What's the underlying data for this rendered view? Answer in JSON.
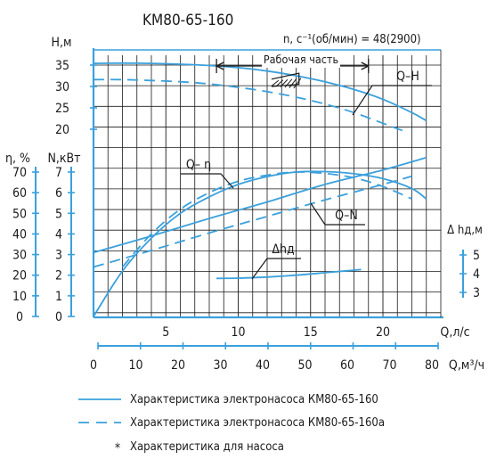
{
  "chart_data": {
    "type": "line",
    "title": "KM80-65-160",
    "speed_label": "n, c⁻¹(об/мин) = 48(2900)",
    "working_part_label": "Рабочая часть",
    "x_axis": {
      "label": "Q,л/с",
      "range": [
        0,
        24
      ],
      "ticks": [
        "5",
        "10",
        "15",
        "20"
      ],
      "tick_values": [
        5,
        10,
        15,
        20
      ]
    },
    "x_axis_m3h": {
      "label": "Q,м³/ч",
      "ticks": [
        "0",
        "10",
        "20",
        "30",
        "40",
        "50",
        "60",
        "70",
        "80"
      ],
      "tick_values": [
        0,
        10,
        20,
        30,
        40,
        50,
        60,
        70,
        80
      ]
    },
    "axes": {
      "head": {
        "label": "H,м",
        "range": [
          20,
          35
        ],
        "ticks": [
          "35",
          "30",
          "25",
          "20"
        ],
        "tick_values": [
          35,
          30,
          25,
          20
        ]
      },
      "power": {
        "label": "N,кВт",
        "range": [
          0,
          7
        ],
        "ticks": [
          "7",
          "6",
          "5",
          "4",
          "3",
          "2",
          "1",
          "0"
        ],
        "tick_values": [
          7,
          6,
          5,
          4,
          3,
          2,
          1,
          0
        ]
      },
      "efficiency": {
        "label": "η, %",
        "range": [
          0,
          70
        ],
        "ticks": [
          "70",
          "60",
          "50",
          "40",
          "30",
          "20",
          "10",
          "0"
        ],
        "tick_values": [
          70,
          60,
          50,
          40,
          30,
          20,
          10,
          0
        ]
      },
      "npsh": {
        "label": "Δ hд,м",
        "range": [
          3,
          5
        ],
        "ticks": [
          "5",
          "4",
          "3"
        ],
        "tick_values": [
          5,
          4,
          3
        ]
      }
    },
    "working_range": [
      8.5,
      19
    ],
    "curve_labels": {
      "qh": "Q–H",
      "qeta": "Q– η",
      "qn": "Q–N",
      "npsh": "Δhд"
    },
    "series": [
      {
        "curve": "Q-H",
        "variant": "KM80-65-160",
        "axis": "head",
        "x": [
          0,
          2,
          4,
          6,
          8,
          10,
          12,
          14,
          16,
          18,
          20,
          22,
          23
        ],
        "y": [
          35.4,
          35.45,
          35.4,
          35.2,
          34.9,
          34.4,
          33.6,
          32.5,
          31.1,
          29.3,
          27.0,
          23.9,
          22.0
        ]
      },
      {
        "curve": "Q-H",
        "variant": "KM80-65-160a",
        "axis": "head",
        "x": [
          0,
          2,
          4,
          6,
          8,
          10,
          12,
          14,
          16,
          18,
          20,
          21.5
        ],
        "y": [
          31.6,
          31.6,
          31.4,
          31.1,
          30.6,
          29.8,
          28.8,
          27.5,
          25.9,
          23.9,
          21.4,
          19.5
        ]
      },
      {
        "curve": "Q-η",
        "variant": "KM80-65-160",
        "axis": "efficiency",
        "x": [
          0,
          2,
          4,
          6,
          8,
          10,
          12,
          14,
          16,
          18,
          20,
          22,
          23
        ],
        "y": [
          0,
          22,
          38,
          50,
          58,
          64,
          67.8,
          70,
          70.2,
          69.2,
          66.8,
          62,
          57
        ]
      },
      {
        "curve": "Q-η",
        "variant": "KM80-65-160a",
        "axis": "efficiency",
        "x": [
          2,
          4,
          6,
          8,
          10,
          12,
          14,
          16,
          18,
          20,
          22
        ],
        "y": [
          24,
          40,
          52,
          60,
          65.5,
          68.5,
          70,
          69.3,
          67.2,
          63,
          57
        ]
      },
      {
        "curve": "Q-N",
        "variant": "KM80-65-160",
        "axis": "power",
        "x": [
          0,
          4,
          8,
          12,
          16,
          20,
          23
        ],
        "y": [
          3.1,
          3.9,
          4.75,
          5.55,
          6.4,
          7.1,
          7.7
        ]
      },
      {
        "curve": "Q-N",
        "variant": "KM80-65-160a",
        "axis": "power",
        "x": [
          0,
          4,
          8,
          12,
          16,
          20,
          22
        ],
        "y": [
          2.4,
          3.2,
          4.05,
          4.85,
          5.65,
          6.4,
          6.8
        ]
      },
      {
        "curve": "Δhд",
        "variant": "KM80-65-160",
        "axis": "npsh",
        "x": [
          8.5,
          10,
          12,
          14,
          16,
          18.5
        ],
        "y": [
          3.75,
          3.76,
          3.82,
          3.92,
          4.05,
          4.22
        ]
      }
    ],
    "legend": {
      "placement": "bottom",
      "entries": [
        {
          "style": "solid",
          "label": "Характеристика электронасоса КМ80-65-160"
        },
        {
          "style": "dashed",
          "label": "Характеристика электронасоса КМ80-65-160а"
        },
        {
          "style": "asterisk",
          "label": "Характеристика для насоса"
        }
      ]
    },
    "colors": {
      "curve": "#3aa0dc",
      "grid": "#1a1a1a",
      "axis": "#3aa0dc"
    },
    "grid": true
  }
}
